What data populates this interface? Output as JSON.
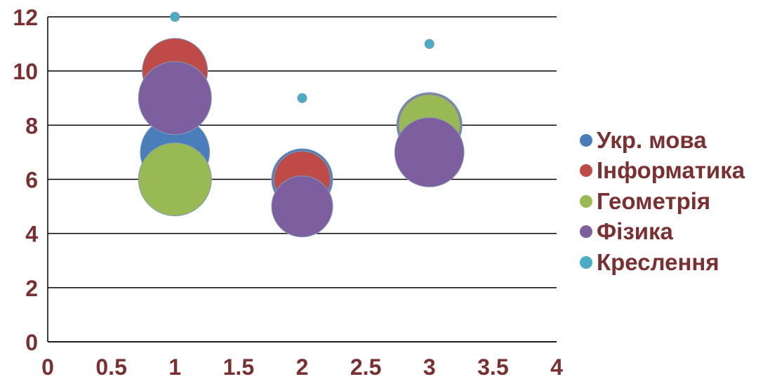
{
  "chart_data": {
    "type": "bubble",
    "title": "",
    "xlabel": "",
    "ylabel": "",
    "xlim": [
      0,
      4
    ],
    "ylim": [
      0,
      12
    ],
    "xticks": [
      "0",
      "0.5",
      "1",
      "1.5",
      "2",
      "2.5",
      "3",
      "3.5",
      "4"
    ],
    "yticks": [
      "0",
      "2",
      "4",
      "6",
      "8",
      "10",
      "12"
    ],
    "grid": "horizontal",
    "legend_position": "right",
    "tick_color": "#7a3030",
    "series": [
      {
        "name": "Укр. мова",
        "color": "#4a7ebb",
        "points": [
          {
            "x": 1,
            "y": 7,
            "size": 9
          },
          {
            "x": 2,
            "y": 6,
            "size": 7
          },
          {
            "x": 3,
            "y": 8,
            "size": 8
          }
        ]
      },
      {
        "name": "Інформатика",
        "color": "#be4b48",
        "points": [
          {
            "x": 1,
            "y": 10,
            "size": 8
          },
          {
            "x": 2,
            "y": 6,
            "size": 6
          },
          {
            "x": 3,
            "y": 8,
            "size": 7.5
          }
        ]
      },
      {
        "name": "Геометрія",
        "color": "#98b954",
        "points": [
          {
            "x": 1,
            "y": 6,
            "size": 10
          },
          {
            "x": 3,
            "y": 8,
            "size": 7
          }
        ]
      },
      {
        "name": "Фізика",
        "color": "#7d5fa0",
        "points": [
          {
            "x": 1,
            "y": 9,
            "size": 10
          },
          {
            "x": 2,
            "y": 5,
            "size": 7
          },
          {
            "x": 3,
            "y": 7,
            "size": 9
          }
        ]
      },
      {
        "name": "Креслення",
        "color": "#4bacc6",
        "points": [
          {
            "x": 1,
            "y": 12,
            "size": 1
          },
          {
            "x": 2,
            "y": 9,
            "size": 1
          },
          {
            "x": 3,
            "y": 11,
            "size": 1
          }
        ]
      }
    ]
  }
}
